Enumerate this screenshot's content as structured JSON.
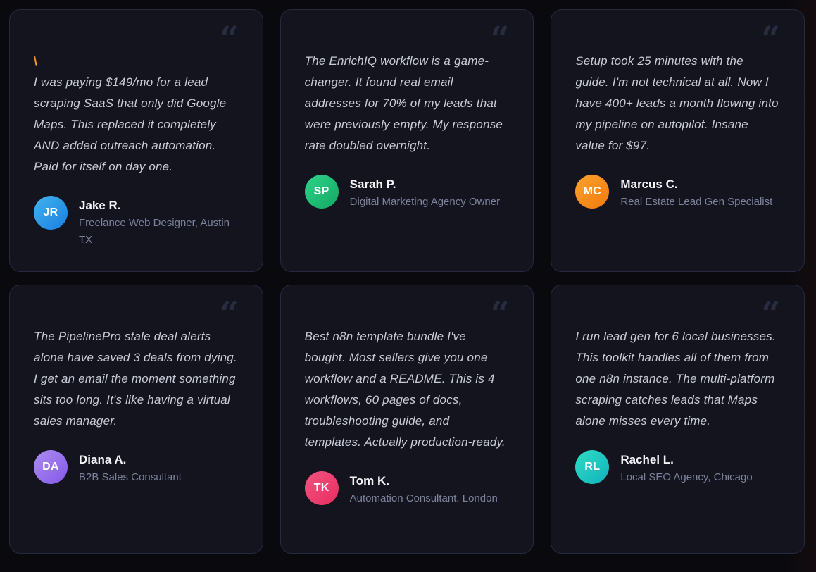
{
  "ui": {
    "quote_glyph": "“",
    "colors": {
      "page_bg": "#0a0a0e",
      "card_bg": "#13141e",
      "card_border": "#262a3e",
      "quote_text": "#c9ccd7",
      "quote_icon": "#282c40",
      "name_text": "#f3f4f8",
      "title_text": "#7d829b",
      "prefix_accent": "#f5a623"
    }
  },
  "testimonials": [
    {
      "prefix": "\\",
      "quote": "I was paying $149/mo for a lead scraping SaaS that only did Google Maps. This replaced it completely AND added outreach automation. Paid for itself on day one.",
      "initials": "JR",
      "name": "Jake R.",
      "title": "Freelance Web Designer, Austin TX",
      "avatar_from": "#42b4ec",
      "avatar_to": "#1a7ee2"
    },
    {
      "prefix": "",
      "quote": "The EnrichIQ workflow is a game-changer. It found real email addresses for 70% of my leads that were previously empty. My response rate doubled overnight.",
      "initials": "SP",
      "name": "Sarah P.",
      "title": "Digital Marketing Agency Owner",
      "avatar_from": "#2ed489",
      "avatar_to": "#14a763"
    },
    {
      "prefix": "",
      "quote": "Setup took 25 minutes with the guide. I'm not technical at all. Now I have 400+ leads a month flowing into my pipeline on autopilot. Insane value for $97.",
      "initials": "MC",
      "name": "Marcus C.",
      "title": "Real Estate Lead Gen Specialist",
      "avatar_from": "#fba32c",
      "avatar_to": "#f2790f"
    },
    {
      "prefix": "",
      "quote": "The PipelinePro stale deal alerts alone have saved 3 deals from dying. I get an email the moment something sits too long. It's like having a virtual sales manager.",
      "initials": "DA",
      "name": "Diana A.",
      "title": "B2B Sales Consultant",
      "avatar_from": "#ab8df0",
      "avatar_to": "#8557e8"
    },
    {
      "prefix": "",
      "quote": "Best n8n template bundle I've bought. Most sellers give you one workflow and a README. This is 4 workflows, 60 pages of docs, troubleshooting guide, and templates. Actually production-ready.",
      "initials": "TK",
      "name": "Tom K.",
      "title": "Automation Consultant, London",
      "avatar_from": "#f4537f",
      "avatar_to": "#e62e62"
    },
    {
      "prefix": "",
      "quote": "I run lead gen for 6 local businesses. This toolkit handles all of them from one n8n instance. The multi-platform scraping catches leads that Maps alone misses every time.",
      "initials": "RL",
      "name": "Rachel L.",
      "title": "Local SEO Agency, Chicago",
      "avatar_from": "#2fdcc3",
      "avatar_to": "#12b2bd"
    }
  ]
}
